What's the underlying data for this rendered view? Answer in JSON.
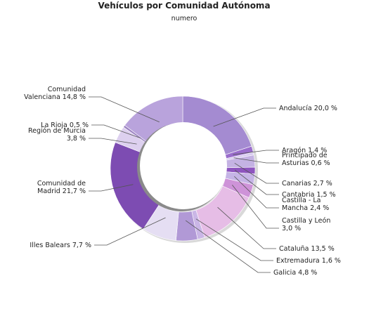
{
  "chart_data": {
    "type": "pie",
    "variant": "donut",
    "title": "Vehículos por Comunidad Autónoma",
    "subtitle": "numero",
    "slices": [
      {
        "name": "Andalucía",
        "value": 20.0,
        "label": "Andalucía 20,0 %",
        "color": "#a48bd1"
      },
      {
        "name": "Aragón",
        "value": 1.4,
        "label": "Aragón 1,4 %",
        "color": "#9a6dcc"
      },
      {
        "name": "Principado de Asturias",
        "value": 0.6,
        "label": "Principado de Asturias 0,6 %",
        "color": "#d8ccef"
      },
      {
        "name": "Canarias",
        "value": 2.7,
        "label": "Canarias 2,7 %",
        "color": "#c4b2e3"
      },
      {
        "name": "Cantabria",
        "value": 1.5,
        "label": "Cantabria 1,5 %",
        "color": "#8e55bf"
      },
      {
        "name": "Castilla - La Mancha",
        "value": 2.4,
        "label": "Castilla - La Mancha 2,4 %",
        "color": "#c5b4e6"
      },
      {
        "name": "Castilla y León",
        "value": 3.0,
        "label": "Castilla y León 3,0 %",
        "color": "#ce93d8"
      },
      {
        "name": "Cataluña",
        "value": 13.5,
        "label": "Cataluña 13,5 %",
        "color": "#e6bde6"
      },
      {
        "name": "Extremadura",
        "value": 1.6,
        "label": "Extremadura 1,6 %",
        "color": "#cab6e6"
      },
      {
        "name": "Galicia",
        "value": 4.8,
        "label": "Galicia 4,8 %",
        "color": "#b199d6"
      },
      {
        "name": "Illes Balears",
        "value": 7.7,
        "label": "Illes Balears 7,7 %",
        "color": "#e5def3"
      },
      {
        "name": "Comunidad de Madrid",
        "value": 21.7,
        "label": "Comunidad de Madrid 21,7 %",
        "color": "#7d4cb2"
      },
      {
        "name": "Región de Murcia",
        "value": 3.8,
        "label": "Región de Murcia 3,8 %",
        "color": "#ddd0ef"
      },
      {
        "name": "La Rioja",
        "value": 0.5,
        "label": "La Rioja 0,5 %",
        "color": "#9b82c2"
      },
      {
        "name": "Comunidad Valenciana",
        "value": 14.8,
        "label": "Comunidad Valenciana 14,8 %",
        "color": "#b9a3dc"
      }
    ],
    "start": "12 o'clock",
    "direction": "clockwise"
  }
}
